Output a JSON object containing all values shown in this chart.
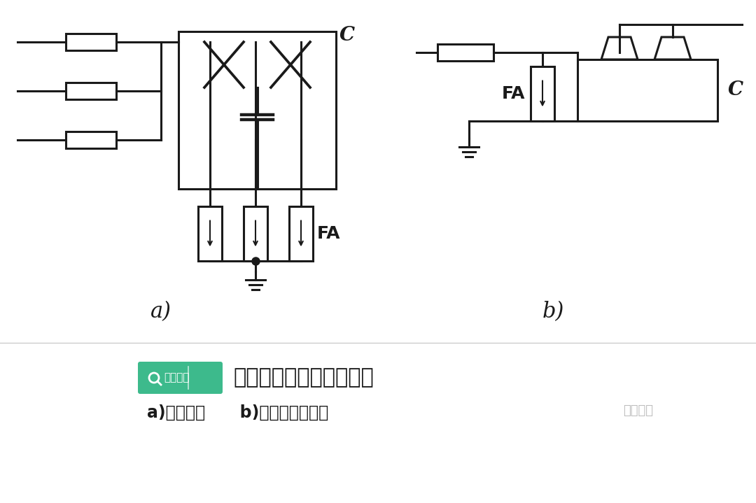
{
  "bg_color": "#ffffff",
  "line_color": "#1a1a1a",
  "lw": 2.2,
  "title1": "线路移相电容器保护接线",
  "title2": "a)接线方法      b)避雷器安装方法",
  "label_a": "a)",
  "label_b": "b)",
  "brand_text": "电工知库",
  "brand_color": "#3dba8c",
  "watermark": "电工知库"
}
